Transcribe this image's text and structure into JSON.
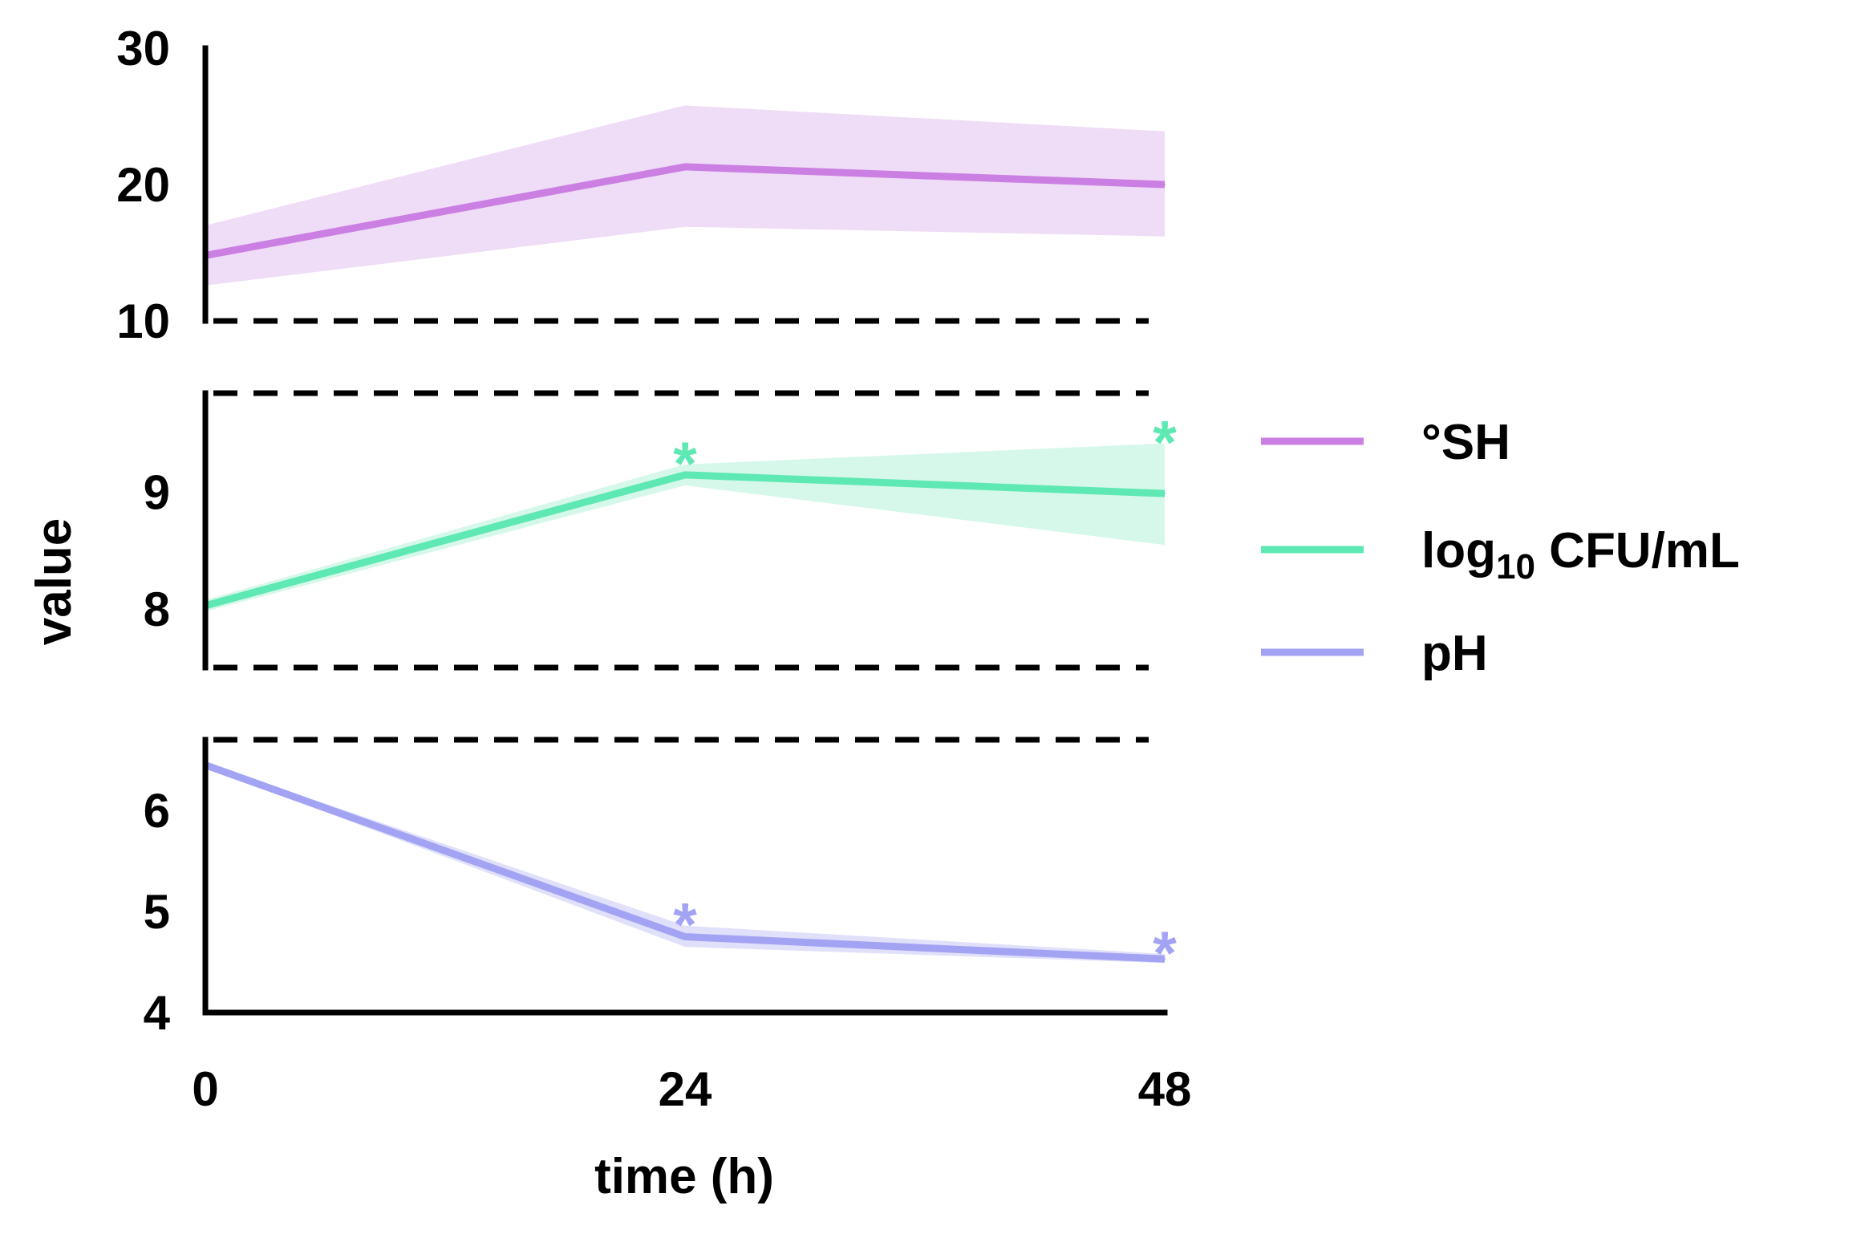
{
  "chart_data": {
    "type": "line",
    "xlabel": "time (h)",
    "ylabel": "value",
    "x": [
      0,
      24,
      48
    ],
    "x_tick_labels": [
      "0",
      "24",
      "48"
    ],
    "xlim": [
      0,
      48
    ],
    "broken_y_axis": true,
    "panels": [
      {
        "series": "°SH",
        "ylim": [
          10,
          30
        ],
        "y_ticks": [
          10,
          20,
          30
        ],
        "y_tick_labels": [
          "10",
          "20",
          "30"
        ],
        "break_at": [
          "bottom"
        ]
      },
      {
        "series": "log10 CFU/mL",
        "ylim": [
          7.5,
          9.85
        ],
        "y_ticks": [
          8,
          9
        ],
        "y_tick_labels": [
          "8",
          "9"
        ],
        "break_at": [
          "top",
          "bottom"
        ]
      },
      {
        "series": "pH",
        "ylim": [
          4,
          6.7
        ],
        "y_ticks": [
          4,
          5,
          6
        ],
        "y_tick_labels": [
          "4",
          "5",
          "6"
        ],
        "break_at": [
          "top"
        ]
      }
    ],
    "series": [
      {
        "name": "°SH",
        "color": "#CB7FE3",
        "band_color": "#EFDCF6",
        "values": [
          14.8,
          21.3,
          20.0
        ],
        "lower": [
          12.6,
          16.9,
          16.2
        ],
        "upper": [
          17.0,
          25.8,
          23.9
        ],
        "significance": [
          "",
          "",
          ""
        ]
      },
      {
        "name": "log10 CFU/mL",
        "color": "#5EE8B4",
        "band_color": "#D6F8EA",
        "values": [
          8.03,
          9.15,
          8.99
        ],
        "lower": [
          7.98,
          9.06,
          8.55
        ],
        "upper": [
          8.08,
          9.24,
          9.42
        ],
        "significance": [
          "",
          "*",
          "*"
        ]
      },
      {
        "name": "pH",
        "color": "#A3A3F4",
        "band_color": "#E0E0FB",
        "values": [
          6.45,
          4.75,
          4.53
        ],
        "lower": [
          6.43,
          4.65,
          4.49
        ],
        "upper": [
          6.47,
          4.86,
          4.58
        ],
        "significance": [
          "",
          "*",
          "*"
        ]
      }
    ],
    "legend": {
      "position": "right",
      "entries": [
        {
          "label_main": "°SH",
          "label_sub": "",
          "label_tail": ""
        },
        {
          "label_main": "log",
          "label_sub": "10",
          "label_tail": " CFU/mL"
        },
        {
          "label_main": "pH",
          "label_sub": "",
          "label_tail": ""
        }
      ]
    }
  }
}
